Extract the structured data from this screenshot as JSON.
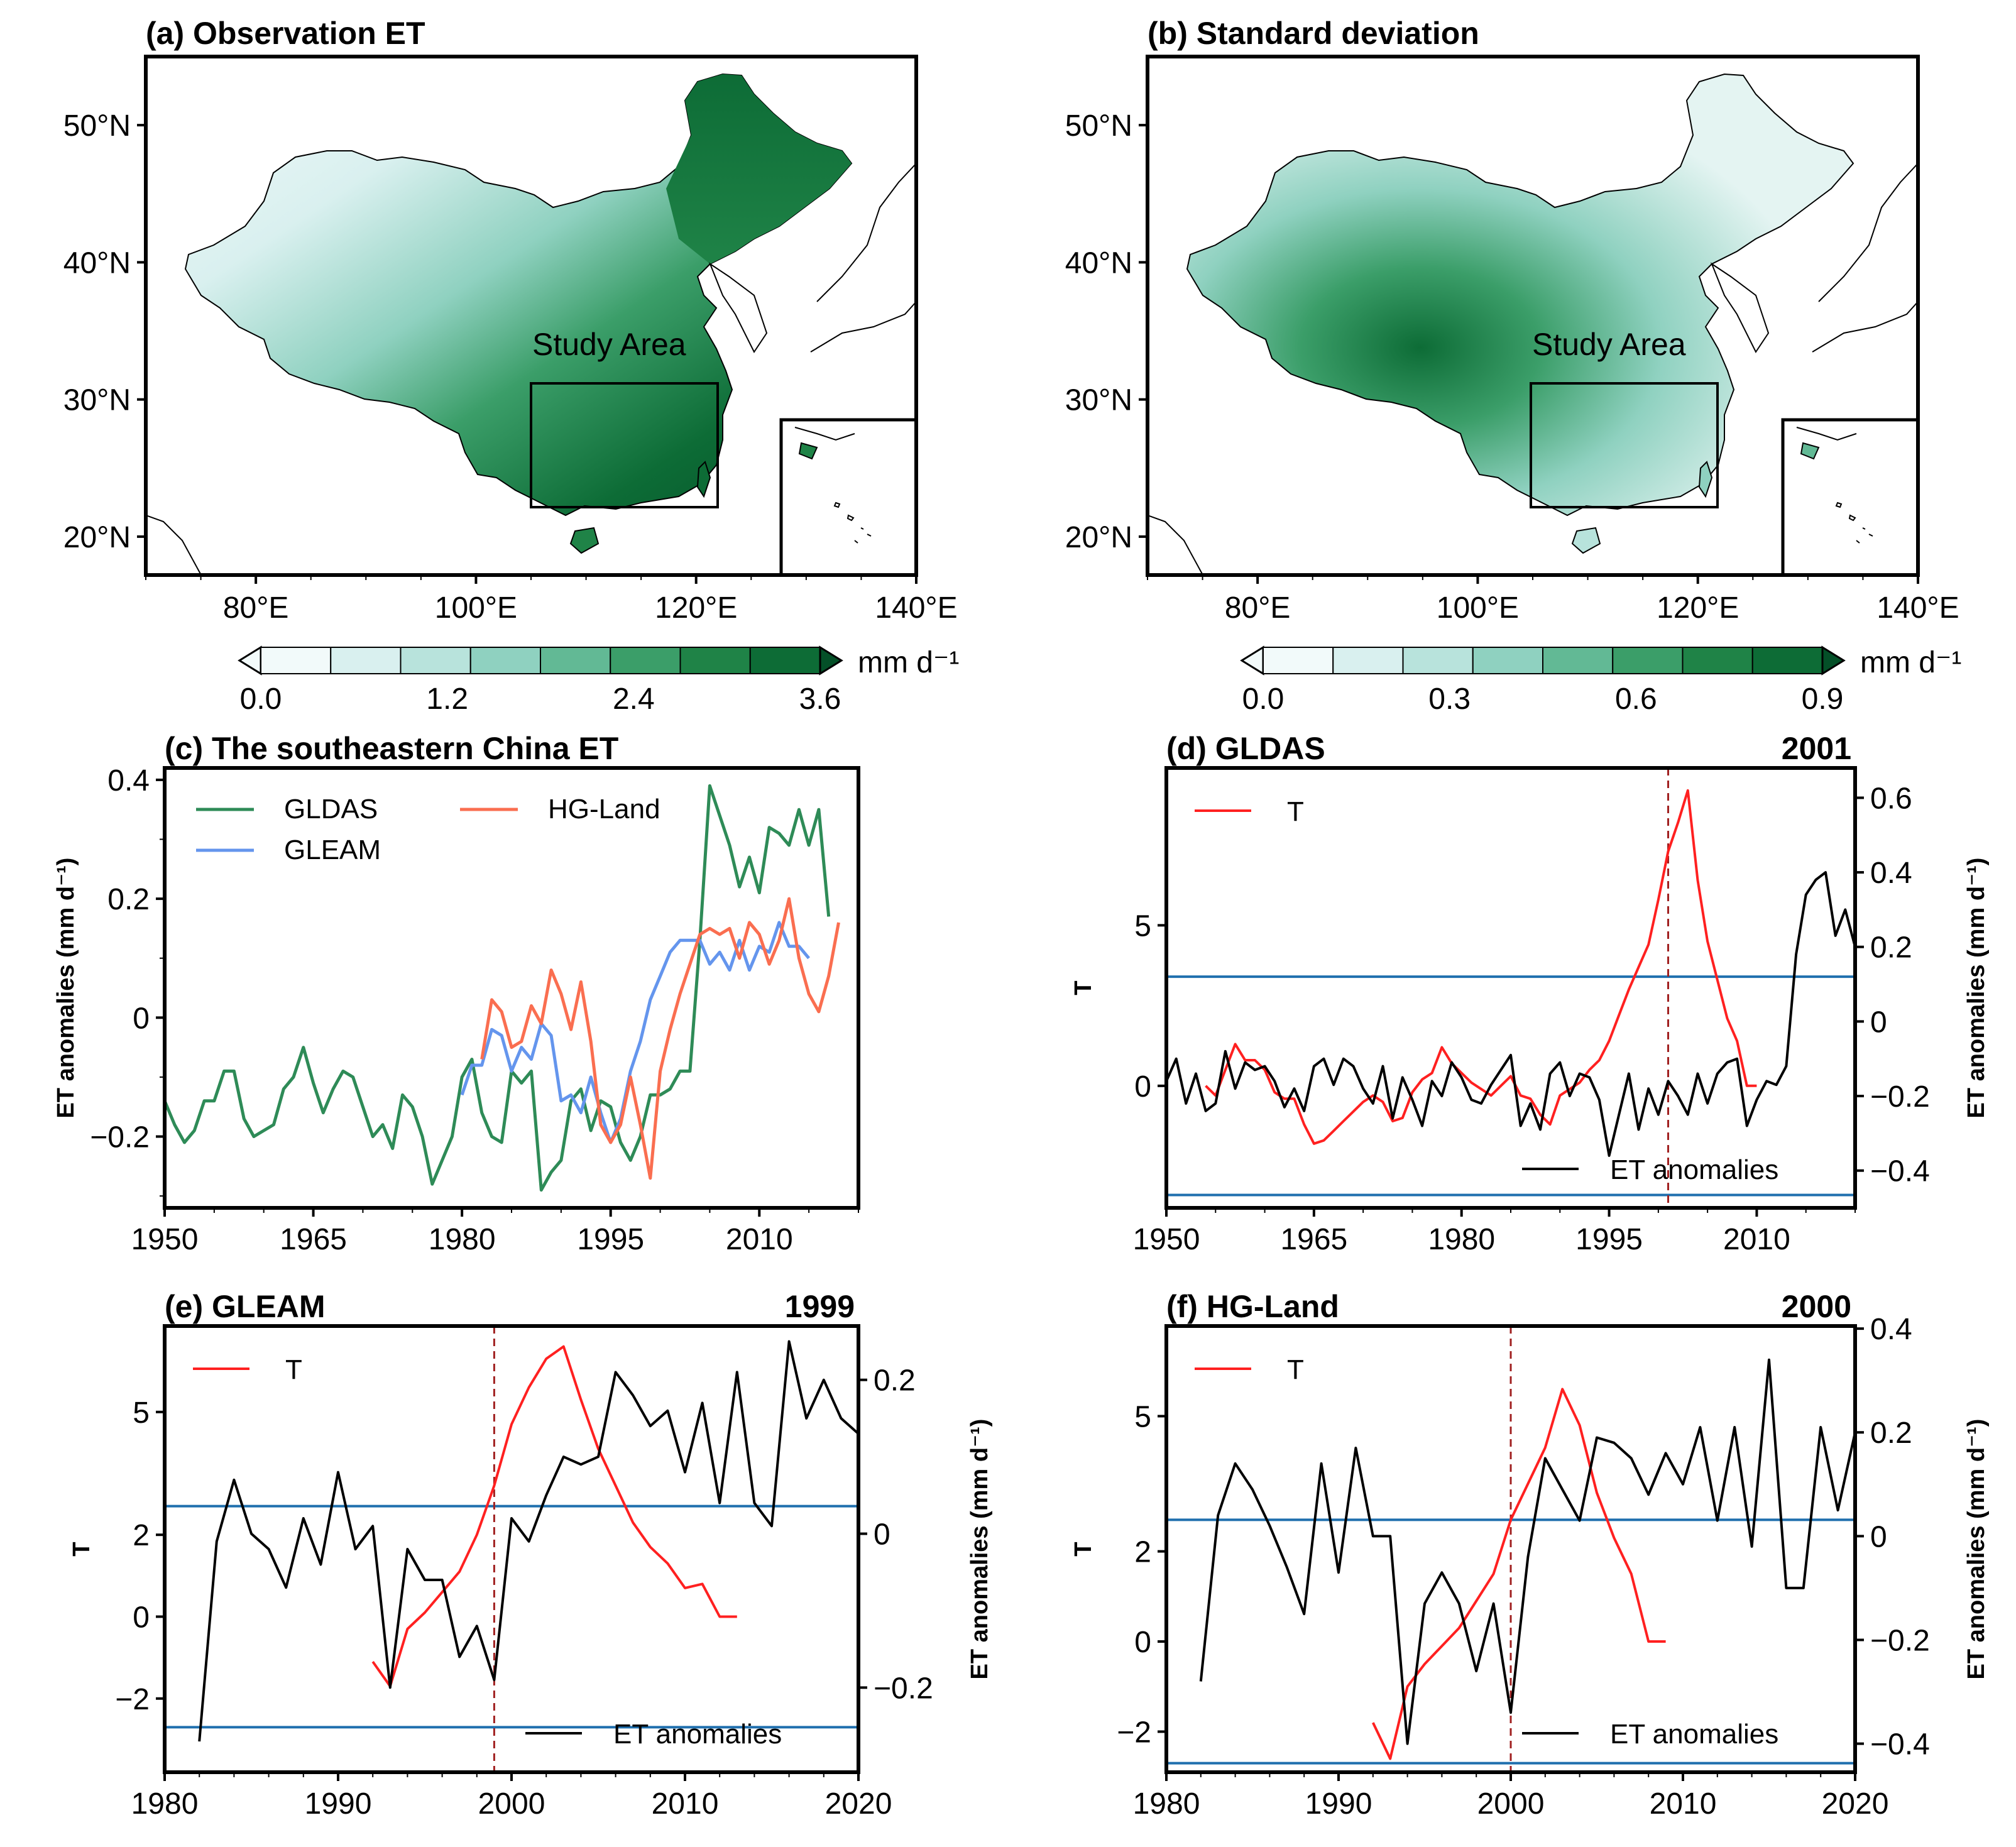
{
  "maps": [
    {
      "id": "a",
      "title": "(a) Observation ET",
      "region_label": "Study Area",
      "lat_ticks": [
        "20°N",
        "30°N",
        "40°N",
        "50°N"
      ],
      "lon_ticks": [
        "80°E",
        "100°E",
        "120°E",
        "140°E"
      ],
      "colorbar": {
        "ticks": [
          "0.0",
          "1.2",
          "2.4",
          "3.6"
        ],
        "unit": "mm d⁻¹",
        "colors": [
          "#f2fafa",
          "#d9f0ef",
          "#b8e3dc",
          "#8fd1c0",
          "#62b995",
          "#3b9e69",
          "#1f8347",
          "#0d6c36",
          "#045028"
        ]
      },
      "shading": "ET increases from northwest (light) to southeast (dark green)"
    },
    {
      "id": "b",
      "title": "(b) Standard deviation",
      "region_label": "Study Area",
      "lat_ticks": [
        "20°N",
        "30°N",
        "40°N",
        "50°N"
      ],
      "lon_ticks": [
        "80°E",
        "100°E",
        "120°E",
        "140°E"
      ],
      "colorbar": {
        "ticks": [
          "0.0",
          "0.3",
          "0.6",
          "0.9"
        ],
        "unit": "mm d⁻¹",
        "colors": [
          "#f2fafa",
          "#d9f0ef",
          "#b8e3dc",
          "#8fd1c0",
          "#62b995",
          "#3b9e69",
          "#1f8347",
          "#0d6c36",
          "#045028"
        ]
      },
      "shading": "Highest variability over southwestern plateau"
    }
  ],
  "colors": {
    "GLDAS": "#2e8b57",
    "GLEAM": "#6495ed",
    "HG-Land": "#fa6e50",
    "T": "#ff2020",
    "ET": "#000000",
    "threshold": "#1f6fae",
    "changepoint": "#a02020"
  },
  "chart_data": [
    {
      "id": "c",
      "type": "line",
      "title": "(c) The southeastern China ET",
      "ylabel": "ET anomalies (mm d⁻¹)",
      "xlim": [
        1950,
        2020
      ],
      "ylim": [
        -0.32,
        0.42
      ],
      "x_ticks": [
        1950,
        1965,
        1980,
        1995,
        2010
      ],
      "y_ticks": [
        -0.2,
        0,
        0.2,
        0.4
      ],
      "y_tick_labels": [
        "−0.2",
        "0",
        "0.2",
        "0.4"
      ],
      "legend": [
        "GLDAS",
        "GLEAM",
        "HG-Land"
      ],
      "series": [
        {
          "name": "GLDAS",
          "x_start": 1948,
          "values": [
            -0.1,
            -0.04,
            -0.14,
            -0.18,
            -0.21,
            -0.19,
            -0.14,
            -0.14,
            -0.09,
            -0.09,
            -0.17,
            -0.2,
            -0.19,
            -0.18,
            -0.12,
            -0.1,
            -0.05,
            -0.11,
            -0.16,
            -0.12,
            -0.09,
            -0.1,
            -0.15,
            -0.2,
            -0.18,
            -0.22,
            -0.13,
            -0.15,
            -0.2,
            -0.28,
            -0.24,
            -0.2,
            -0.1,
            -0.07,
            -0.16,
            -0.2,
            -0.21,
            -0.09,
            -0.11,
            -0.09,
            -0.29,
            -0.26,
            -0.24,
            -0.14,
            -0.12,
            -0.19,
            -0.14,
            -0.15,
            -0.21,
            -0.24,
            -0.2,
            -0.13,
            -0.13,
            -0.12,
            -0.09,
            -0.09,
            0.13,
            0.39,
            0.34,
            0.29,
            0.22,
            0.27,
            0.21,
            0.32,
            0.31,
            0.29,
            0.35,
            0.29,
            0.35,
            0.17
          ]
        },
        {
          "name": "GLEAM",
          "x_start": 1980,
          "values": [
            -0.13,
            -0.08,
            -0.08,
            -0.02,
            -0.03,
            -0.09,
            -0.05,
            -0.07,
            -0.01,
            -0.03,
            -0.14,
            -0.13,
            -0.16,
            -0.1,
            -0.16,
            -0.21,
            -0.17,
            -0.09,
            -0.04,
            0.03,
            0.07,
            0.11,
            0.13,
            0.13,
            0.13,
            0.09,
            0.11,
            0.08,
            0.13,
            0.08,
            0.12,
            0.11,
            0.16,
            0.12,
            0.12,
            0.1
          ]
        },
        {
          "name": "HG-Land",
          "x_start": 1982,
          "values": [
            -0.07,
            0.03,
            0.01,
            -0.05,
            -0.04,
            0.02,
            -0.01,
            0.08,
            0.04,
            -0.02,
            0.06,
            -0.04,
            -0.18,
            -0.21,
            -0.18,
            -0.1,
            -0.18,
            -0.27,
            -0.09,
            -0.02,
            0.04,
            0.09,
            0.14,
            0.15,
            0.14,
            0.15,
            0.1,
            0.16,
            0.14,
            0.09,
            0.13,
            0.2,
            0.1,
            0.04,
            0.01,
            0.07,
            0.16
          ]
        }
      ]
    },
    {
      "id": "d",
      "type": "line",
      "title": "(d) GLDAS",
      "year_label": "2001",
      "ylabel_left": "T",
      "ylabel_right": "ET anomalies (mm d⁻¹)",
      "xlim": [
        1950,
        2020
      ],
      "ylim_left": [
        -3.8,
        9.9
      ],
      "ylim_right": [
        -0.5,
        0.68
      ],
      "x_ticks": [
        1950,
        1965,
        1980,
        1995,
        2010
      ],
      "y_ticks_left": [
        0,
        5
      ],
      "y_ticks_right": [
        -0.4,
        -0.2,
        0,
        0.2,
        0.4,
        0.6
      ],
      "y_tick_labels_right": [
        "−0.4",
        "−0.2",
        "0",
        "0.2",
        "0.4",
        "0.6"
      ],
      "threshold": 3.4,
      "changepoint": 2001,
      "legend": [
        "T",
        "ET anomalies"
      ],
      "series": [
        {
          "name": "T",
          "axis": "left",
          "x_start": 1954,
          "values": [
            0.0,
            -0.3,
            0.5,
            1.3,
            0.8,
            0.8,
            0.5,
            -0.2,
            -0.4,
            -0.4,
            -1.2,
            -1.8,
            -1.7,
            -1.4,
            -1.1,
            -0.8,
            -0.5,
            -0.3,
            -0.5,
            -1.1,
            -1.0,
            -0.2,
            0.2,
            0.4,
            1.2,
            0.7,
            0.4,
            0.1,
            -0.1,
            -0.3,
            0.0,
            0.3,
            -0.3,
            -0.4,
            -0.9,
            -1.2,
            -0.3,
            -0.1,
            0.1,
            0.5,
            0.8,
            1.4,
            2.2,
            3.0,
            3.7,
            4.4,
            5.8,
            7.3,
            8.2,
            9.2,
            6.4,
            4.5,
            3.3,
            2.1,
            1.4,
            0.0,
            0.0
          ]
        },
        {
          "name": "ET anomalies",
          "axis": "right",
          "x_start": 1948,
          "values": [
            -0.2,
            -0.12,
            -0.16,
            -0.1,
            -0.22,
            -0.14,
            -0.24,
            -0.22,
            -0.08,
            -0.18,
            -0.11,
            -0.13,
            -0.12,
            -0.16,
            -0.23,
            -0.18,
            -0.24,
            -0.12,
            -0.1,
            -0.17,
            -0.1,
            -0.12,
            -0.18,
            -0.22,
            -0.12,
            -0.26,
            -0.15,
            -0.21,
            -0.28,
            -0.16,
            -0.2,
            -0.11,
            -0.15,
            -0.21,
            -0.22,
            -0.17,
            -0.13,
            -0.09,
            -0.28,
            -0.22,
            -0.29,
            -0.14,
            -0.11,
            -0.2,
            -0.14,
            -0.15,
            -0.21,
            -0.36,
            -0.25,
            -0.14,
            -0.29,
            -0.18,
            -0.25,
            -0.16,
            -0.2,
            -0.25,
            -0.14,
            -0.22,
            -0.14,
            -0.11,
            -0.1,
            -0.28,
            -0.21,
            -0.16,
            -0.17,
            -0.12,
            0.18,
            0.34,
            0.38,
            0.4,
            0.23,
            0.3,
            0.2,
            0.3,
            0.23,
            0.35,
            0.2,
            0.45,
            0.27,
            0.08,
            0.5,
            0.27,
            0.65,
            0.17,
            0.26
          ]
        }
      ]
    },
    {
      "id": "e",
      "type": "line",
      "title": "(e) GLEAM",
      "year_label": "1999",
      "ylabel_left": "T",
      "ylabel_right": "ET anomalies (mm d⁻¹)",
      "xlim": [
        1980,
        2020
      ],
      "ylim_left": [
        -3.8,
        7.1
      ],
      "ylim_right": [
        -0.31,
        0.27
      ],
      "x_ticks": [
        1980,
        1990,
        2000,
        2010,
        2020
      ],
      "y_ticks_left": [
        -2,
        0,
        2,
        5
      ],
      "y_tick_labels_left": [
        "−2",
        "0",
        "2",
        "5"
      ],
      "y_ticks_right": [
        -0.2,
        0,
        0.2
      ],
      "y_tick_labels_right": [
        "−0.2",
        "0",
        "0.2"
      ],
      "threshold": 2.7,
      "changepoint": 1999,
      "legend": [
        "T",
        "ET anomalies"
      ],
      "series": [
        {
          "name": "T",
          "axis": "left",
          "x_start": 1992,
          "values": [
            -1.1,
            -1.7,
            -0.3,
            0.1,
            0.6,
            1.1,
            2.0,
            3.2,
            4.7,
            5.6,
            6.3,
            6.6,
            5.3,
            4.1,
            3.2,
            2.3,
            1.7,
            1.3,
            0.7,
            0.8,
            0.0,
            0.0
          ]
        },
        {
          "name": "ET anomalies",
          "axis": "right",
          "x_start": 1982,
          "values": [
            -0.27,
            -0.01,
            0.07,
            0.0,
            -0.02,
            -0.07,
            0.02,
            -0.04,
            0.08,
            -0.02,
            0.01,
            -0.2,
            -0.02,
            -0.06,
            -0.06,
            -0.16,
            -0.12,
            -0.19,
            0.02,
            -0.01,
            0.05,
            0.1,
            0.09,
            0.1,
            0.21,
            0.18,
            0.14,
            0.16,
            0.08,
            0.17,
            0.04,
            0.21,
            0.04,
            0.01,
            0.25,
            0.15,
            0.2,
            0.15,
            0.13
          ]
        }
      ]
    },
    {
      "id": "f",
      "type": "line",
      "title": "(f) HG-Land",
      "year_label": "2000",
      "ylabel_left": "T",
      "ylabel_right": "ET anomalies (mm d⁻¹)",
      "xlim": [
        1980,
        2020
      ],
      "ylim_left": [
        -2.9,
        7.0
      ],
      "ylim_right": [
        -0.455,
        0.405
      ],
      "x_ticks": [
        1980,
        1990,
        2000,
        2010,
        2020
      ],
      "y_ticks_left": [
        -2,
        0,
        2,
        5
      ],
      "y_tick_labels_left": [
        "−2",
        "0",
        "2",
        "5"
      ],
      "y_ticks_right": [
        -0.4,
        -0.2,
        0,
        0.2,
        0.4
      ],
      "y_tick_labels_right": [
        "−0.4",
        "−0.2",
        "0",
        "0.2",
        "0.4"
      ],
      "threshold": 2.7,
      "changepoint": 2000,
      "legend": [
        "T",
        "ET anomalies"
      ],
      "series": [
        {
          "name": "T",
          "axis": "left",
          "x_start": 1992,
          "values": [
            -1.8,
            -2.6,
            -1.0,
            -0.5,
            -0.1,
            0.3,
            0.9,
            1.5,
            2.7,
            3.5,
            4.3,
            5.6,
            4.8,
            3.3,
            2.3,
            1.5,
            0.0,
            0.0
          ]
        },
        {
          "name": "ET anomalies",
          "axis": "right",
          "x_start": 1982,
          "values": [
            -0.28,
            0.04,
            0.14,
            0.09,
            0.02,
            -0.06,
            -0.15,
            0.14,
            -0.07,
            0.17,
            0.0,
            0.0,
            -0.4,
            -0.13,
            -0.07,
            -0.13,
            -0.26,
            -0.13,
            -0.34,
            -0.04,
            0.15,
            0.09,
            0.03,
            0.19,
            0.18,
            0.15,
            0.08,
            0.16,
            0.1,
            0.21,
            0.03,
            0.21,
            -0.02,
            0.34,
            -0.1,
            -0.1,
            0.21,
            0.05,
            0.2
          ]
        }
      ]
    }
  ]
}
